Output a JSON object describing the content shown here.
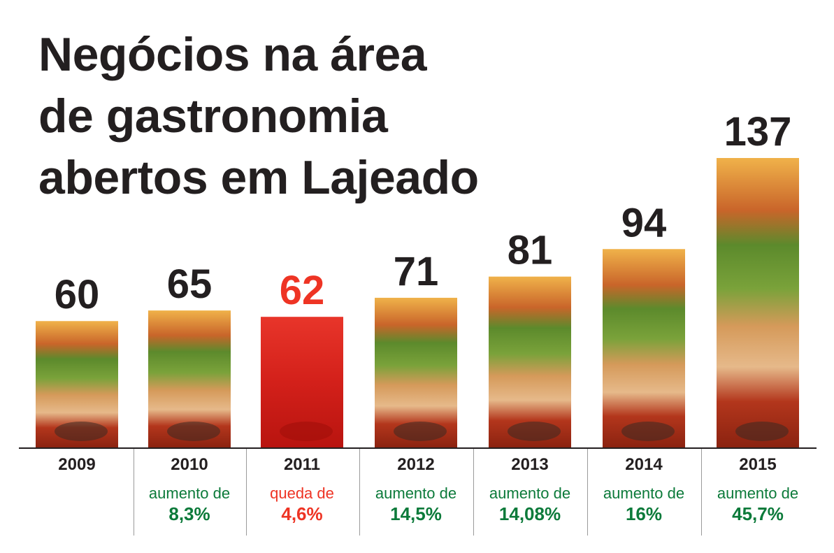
{
  "title_lines": [
    "Negócios na área",
    "de gastronomia",
    "abertos em Lajeado"
  ],
  "colors": {
    "text": "#231f20",
    "increase": "#0c7a3a",
    "decrease": "#ee3424",
    "bar_food": "#b5361c",
    "bar_decline": "#e0231a"
  },
  "chart_data": {
    "type": "bar",
    "categories": [
      "2009",
      "2010",
      "2011",
      "2012",
      "2013",
      "2014",
      "2015"
    ],
    "values": [
      60,
      65,
      62,
      71,
      81,
      94,
      137
    ],
    "value_labels": [
      "60",
      "65",
      "62",
      "71",
      "81",
      "94",
      "137"
    ],
    "changes": [
      null,
      {
        "text": "aumento de",
        "value": "8,3%",
        "direction": "up"
      },
      {
        "text": "queda de",
        "value": "4,6%",
        "direction": "down"
      },
      {
        "text": "aumento de",
        "value": "14,5%",
        "direction": "up"
      },
      {
        "text": "aumento de",
        "value": "14,08%",
        "direction": "up"
      },
      {
        "text": "aumento de",
        "value": "16%",
        "direction": "up"
      },
      {
        "text": "aumento de",
        "value": "45,7%",
        "direction": "up"
      }
    ],
    "title": "Negócios na área de gastronomia abertos em Lajeado",
    "xlabel": "",
    "ylabel": "",
    "ylim": [
      0,
      137
    ],
    "grid": false,
    "legend": "none"
  }
}
